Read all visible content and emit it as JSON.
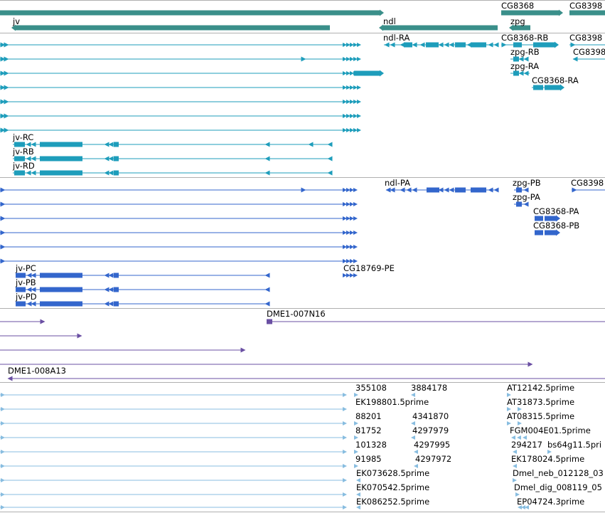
{
  "colors": {
    "gene": "#3a8f8a",
    "transcript": "#1e9dbb",
    "protein": "#3366cc",
    "clone": "#6a4fa3",
    "est": "#88bde0",
    "separator": "#b0b0b0"
  },
  "gene_track": {
    "genes": [
      "jv",
      "ndl",
      "zpg",
      "CG8368",
      "CG8398"
    ]
  },
  "transcript_track": {
    "labels": [
      "ndl-RA",
      "CG8368-RB",
      "CG8398",
      "zpg-RB",
      "CG8398",
      "zpg-RA",
      "CG8368-RA",
      "jv-RC",
      "jv-RB",
      "jv-RD"
    ]
  },
  "protein_track": {
    "labels": [
      "ndl-PA",
      "zpg-PB",
      "CG8398",
      "zpg-PA",
      "CG8368-PA",
      "CG8368-PB",
      "jv-PC",
      "jv-PB",
      "jv-PD",
      "CG18769-PE"
    ]
  },
  "clone_track": {
    "labels": [
      "DME1-007N16",
      "DME1-008A13"
    ]
  },
  "est_track": {
    "labels": [
      "355108",
      "3884178",
      "AT12142.5prime",
      "EK198801.5prime",
      "AT31873.5prime",
      "88201",
      "4341870",
      "AT08315.5prime",
      "81752",
      "4297979",
      "FGM004E01.5prime",
      "101328",
      "4297995",
      "294217",
      "bs64g11.5pri",
      "91985",
      "4297972",
      "EK178024.5prime",
      "EK073628.5prime",
      "Dmel_neb_012128_03",
      "EK070542.5prime",
      "Dmel_dig_008119_05",
      "EK086252.5prime",
      "EP04724.3prime"
    ]
  }
}
